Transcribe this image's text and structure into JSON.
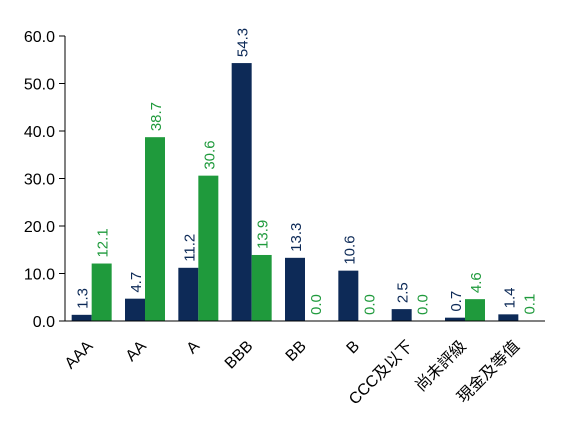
{
  "chart_data": {
    "type": "bar",
    "title": "",
    "xlabel": "",
    "ylabel": "",
    "ylim": [
      0,
      60
    ],
    "yticks": [
      "0.0",
      "10.0",
      "20.0",
      "30.0",
      "40.0",
      "50.0",
      "60.0"
    ],
    "grid": false,
    "legend": "none",
    "categories": [
      "AAA",
      "AA",
      "A",
      "BBB",
      "BB",
      "B",
      "CCC及以下",
      "尚未評級",
      "現金及等值"
    ],
    "series": [
      {
        "color": "#0d2a57",
        "values": [
          1.3,
          4.7,
          11.2,
          54.3,
          13.3,
          10.6,
          2.5,
          0.7,
          1.4
        ],
        "labels": [
          "1.3",
          "4.7",
          "11.2",
          "54.3",
          "13.3",
          "10.6",
          "2.5",
          "0.7",
          "1.4"
        ]
      },
      {
        "color": "#1f9a3c",
        "values": [
          12.1,
          38.7,
          30.6,
          13.9,
          0.0,
          0.0,
          0.0,
          4.6,
          0.1
        ],
        "labels": [
          "12.1",
          "38.7",
          "30.6",
          "13.9",
          "0.0",
          "0.0",
          "0.0",
          "4.6",
          "0.1"
        ]
      }
    ]
  },
  "colors": {
    "axis": "#000000",
    "label_dark": "#0d2a57",
    "label_green": "#1f9a3c"
  }
}
